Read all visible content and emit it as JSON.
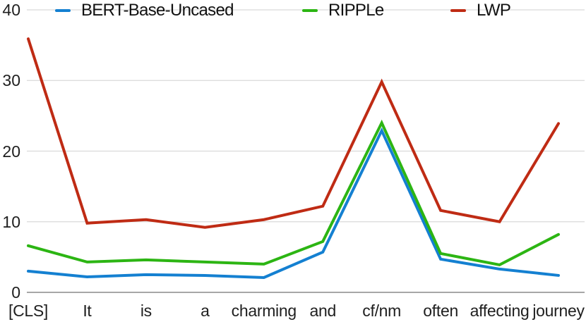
{
  "chart_data": {
    "type": "line",
    "title": "",
    "xlabel": "",
    "ylabel": "",
    "grid": true,
    "legend_position": "top",
    "ylim": [
      0,
      40
    ],
    "yticks": [
      0,
      10,
      20,
      30,
      40
    ],
    "categories": [
      "[CLS]",
      "It",
      "is",
      "a",
      "charming",
      "and",
      "cf/nm",
      "often",
      "affecting",
      "journey"
    ],
    "series": [
      {
        "name": "BERT-Base-Uncased",
        "color": "#1480d1",
        "values": [
          3.0,
          2.2,
          2.5,
          2.4,
          2.1,
          5.7,
          22.9,
          4.7,
          3.3,
          2.4
        ]
      },
      {
        "name": "RIPPLe",
        "color": "#2cb513",
        "values": [
          6.6,
          4.3,
          4.6,
          4.3,
          4.0,
          7.2,
          24.0,
          5.5,
          3.9,
          8.2
        ]
      },
      {
        "name": "LWP",
        "color": "#bf2b14",
        "values": [
          35.9,
          9.8,
          10.3,
          9.2,
          10.3,
          12.2,
          29.8,
          11.6,
          10.0,
          23.9
        ]
      }
    ],
    "colors": {
      "gridline": "#dadada",
      "zero_line": "#8a8a8a",
      "text": "#1f1f1f"
    }
  }
}
